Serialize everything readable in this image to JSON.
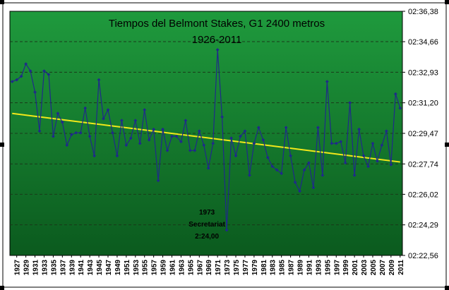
{
  "colors": {
    "plot_top": "#1f9a3d",
    "plot_bottom": "#0b5a1e",
    "series": "#1f2a8a",
    "trend": "#f2e81a",
    "gridline": "#1a3a1a",
    "outer": "#ffffff"
  },
  "chart_data": {
    "type": "line",
    "title": "Tiempos del Belmont Stakes, G1 2400 metros",
    "subtitle": "1926-2011",
    "xlabel": "",
    "ylabel": "",
    "y_axis_side": "right",
    "grid": true,
    "legend": "none",
    "ylim": [
      142.56,
      156.38
    ],
    "y_ticks": [
      {
        "value": 142.56,
        "label": "02:22,56"
      },
      {
        "value": 144.29,
        "label": "02:24,29"
      },
      {
        "value": 146.02,
        "label": "02:26,02"
      },
      {
        "value": 147.74,
        "label": "02:27,74"
      },
      {
        "value": 149.47,
        "label": "02:29,47"
      },
      {
        "value": 151.2,
        "label": "02:31,20"
      },
      {
        "value": 152.93,
        "label": "02:32,93"
      },
      {
        "value": 154.66,
        "label": "02:34,66"
      },
      {
        "value": 156.38,
        "label": "02:36,38"
      }
    ],
    "x_tick_labels": [
      "1927",
      "1929",
      "1931",
      "1933",
      "1935",
      "1937",
      "1939",
      "1941",
      "1943",
      "1945",
      "1947",
      "1949",
      "1951",
      "1953",
      "1955",
      "1957",
      "1959",
      "1961",
      "1963",
      "1965",
      "1967",
      "1969",
      "1971",
      "1973",
      "1975",
      "1977",
      "1979",
      "1981",
      "1983",
      "1985",
      "1987",
      "1989",
      "1991",
      "1993",
      "1995",
      "1997",
      "1999",
      "2001",
      "2003",
      "2005",
      "2007",
      "2009",
      "2011"
    ],
    "x": [
      1926,
      1927,
      1928,
      1929,
      1930,
      1931,
      1932,
      1933,
      1934,
      1935,
      1936,
      1937,
      1938,
      1939,
      1940,
      1941,
      1942,
      1943,
      1944,
      1945,
      1946,
      1947,
      1948,
      1949,
      1950,
      1951,
      1952,
      1953,
      1954,
      1955,
      1956,
      1957,
      1958,
      1959,
      1960,
      1961,
      1962,
      1963,
      1964,
      1965,
      1966,
      1967,
      1968,
      1969,
      1970,
      1971,
      1972,
      1973,
      1974,
      1975,
      1976,
      1977,
      1978,
      1979,
      1980,
      1981,
      1982,
      1983,
      1984,
      1985,
      1986,
      1987,
      1988,
      1989,
      1990,
      1991,
      1992,
      1993,
      1994,
      1995,
      1996,
      1997,
      1998,
      1999,
      2000,
      2001,
      2002,
      2003,
      2004,
      2005,
      2006,
      2007,
      2008,
      2009,
      2010,
      2011
    ],
    "series": [
      {
        "values": [
          152.4,
          152.5,
          152.7,
          153.4,
          153.0,
          151.8,
          149.6,
          153.0,
          152.8,
          149.3,
          150.6,
          150.1,
          148.8,
          149.4,
          149.5,
          149.5,
          150.9,
          149.3,
          148.2,
          152.5,
          150.3,
          150.8,
          149.5,
          148.2,
          150.2,
          148.8,
          149.2,
          150.2,
          148.9,
          150.8,
          149.1,
          149.7,
          146.8,
          149.7,
          148.5,
          149.3,
          149.3,
          149.0,
          150.2,
          148.5,
          148.5,
          149.6,
          148.8,
          147.5,
          148.9,
          154.2,
          150.4,
          144.0,
          149.2,
          148.2,
          149.3,
          149.6,
          147.1,
          148.9,
          149.8,
          149.1,
          148.1,
          147.6,
          147.4,
          147.2,
          149.8,
          148.2,
          146.7,
          146.2,
          147.4,
          147.8,
          146.4,
          149.8,
          147.1,
          152.4,
          148.9,
          148.9,
          149.0,
          147.8,
          151.2,
          147.1,
          149.7,
          148.2,
          147.6,
          148.9,
          147.9,
          148.8,
          149.6,
          147.7,
          151.7,
          150.9
        ]
      }
    ],
    "trend_line": {
      "start": [
        1926,
        150.6
      ],
      "end": [
        2011,
        147.85
      ]
    },
    "annotations": [
      {
        "lines": [
          "1973",
          "Secretariat",
          "2:24,00"
        ],
        "x": 1973,
        "y": 144.0
      }
    ]
  }
}
